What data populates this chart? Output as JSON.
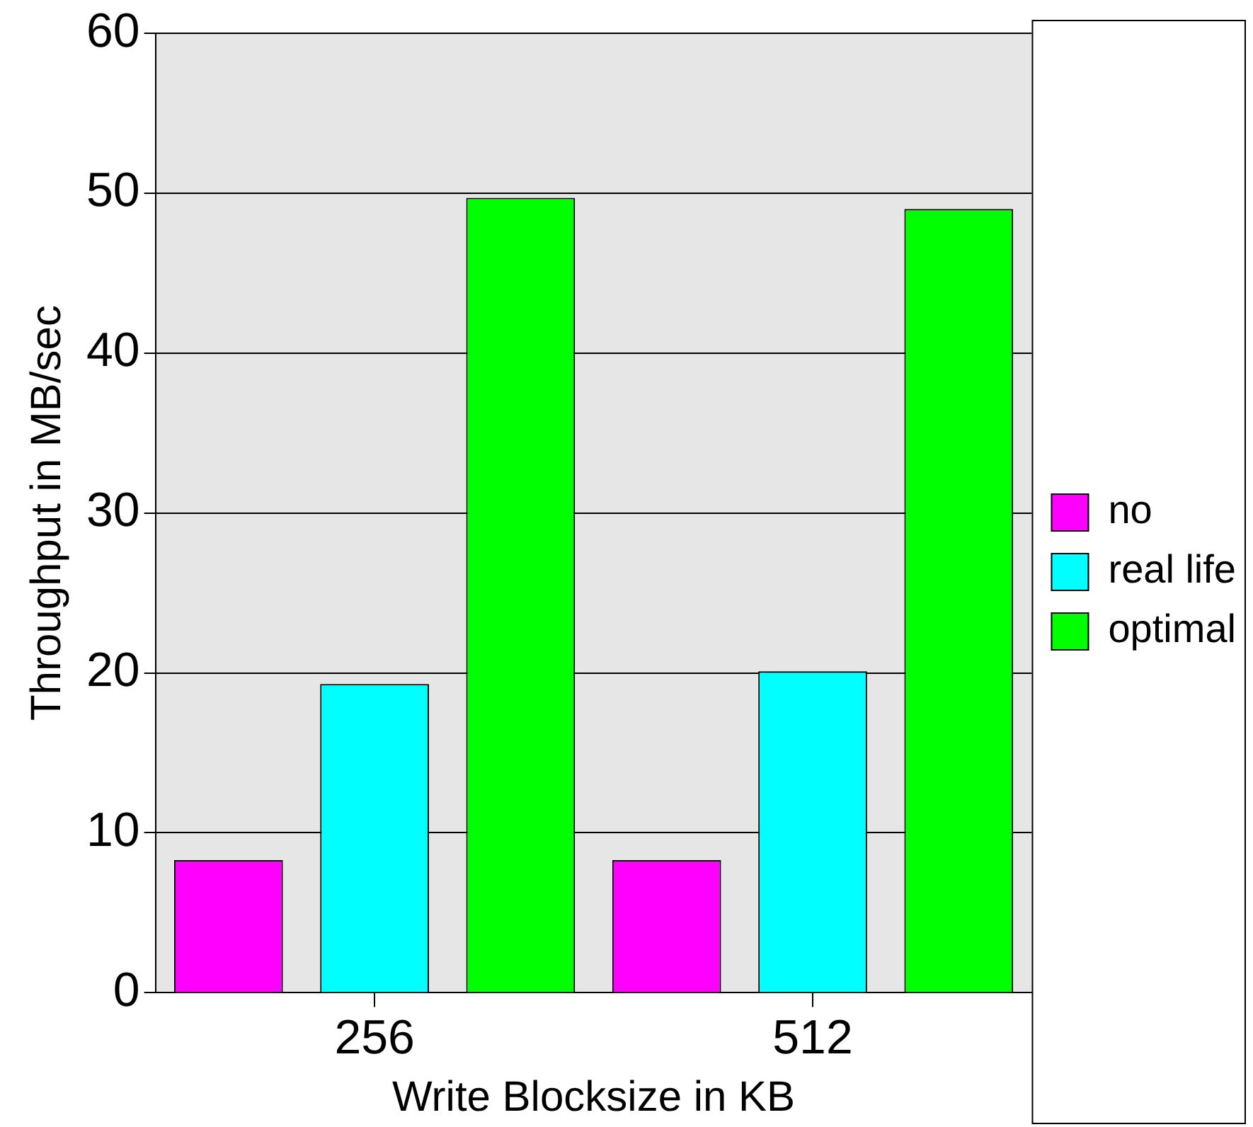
{
  "chart_data": {
    "type": "bar",
    "xlabel": "Write Blocksize in KB",
    "ylabel": "Throughput in MB/sec",
    "categories": [
      "256",
      "512"
    ],
    "series": [
      {
        "name": "no",
        "color": "#ff00ff",
        "values": [
          8.3,
          8.3
        ]
      },
      {
        "name": "real life",
        "color": "#00ffff",
        "values": [
          19.3,
          20.1
        ]
      },
      {
        "name": "optimal",
        "color": "#00ff00",
        "values": [
          49.7,
          49.0
        ]
      }
    ],
    "ylim": [
      0,
      60
    ],
    "yticks": [
      0,
      10,
      20,
      30,
      40,
      50,
      60
    ],
    "grid": "y",
    "legend": "right"
  }
}
